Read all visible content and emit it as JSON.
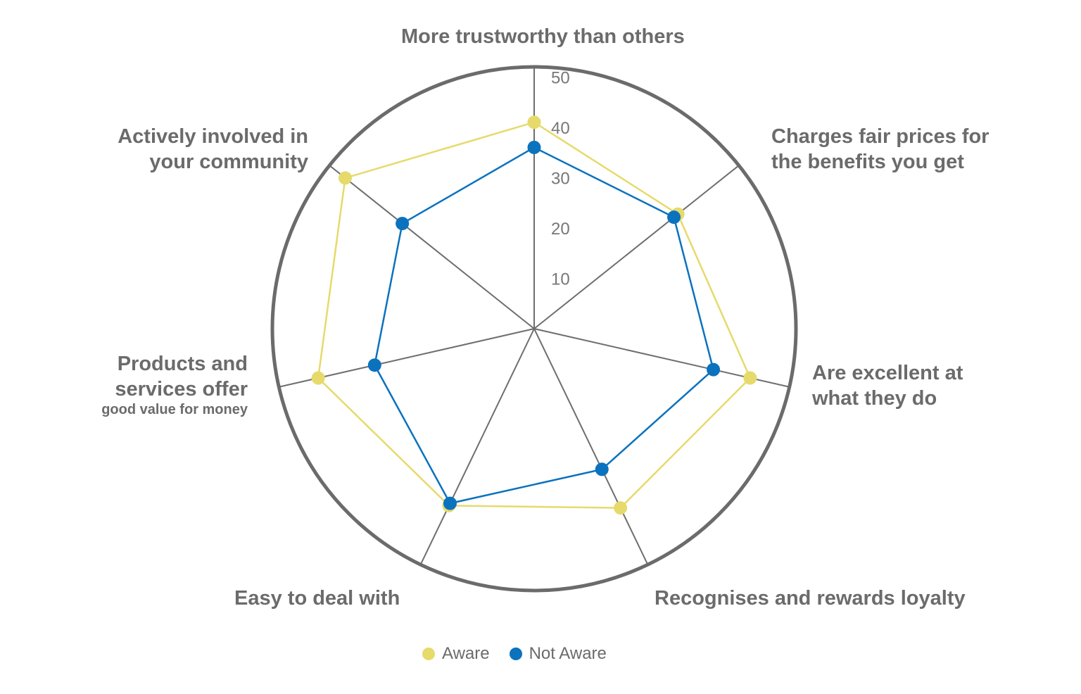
{
  "chart_data": {
    "type": "radar",
    "axes": [
      "More trustworthy than others",
      "Charges fair prices for the benefits you get",
      "Are excellent at what they do",
      "Recognises and rewards loyalty",
      "Easy to deal with",
      "Products and services offer good value for money",
      "Actively involved in your community"
    ],
    "axis_label_lines": {
      "a0": [
        "More trustworthy than others"
      ],
      "a1": [
        "Charges fair prices for",
        "the benefits you get"
      ],
      "a2": [
        "Are excellent at",
        "what they do"
      ],
      "a3": [
        "Recognises and rewards loyalty"
      ],
      "a4": [
        "Easy to deal with"
      ],
      "a5": [
        "Products and",
        "services offer",
        "good value for money"
      ],
      "a6": [
        "Actively involved in",
        "your community"
      ]
    },
    "radial_ticks": [
      "10",
      "20",
      "30",
      "40",
      "50"
    ],
    "rlim": [
      0,
      52
    ],
    "series": [
      {
        "name": "Aware",
        "color": "#E6DA6B",
        "values": [
          41,
          36.5,
          44,
          39.5,
          39,
          44,
          48
        ]
      },
      {
        "name": "Not Aware",
        "color": "#0B72BE",
        "values": [
          36,
          35.5,
          36.5,
          31,
          38.5,
          32.5,
          33.5
        ]
      }
    ],
    "legend": "bottom-center",
    "grid": true
  }
}
